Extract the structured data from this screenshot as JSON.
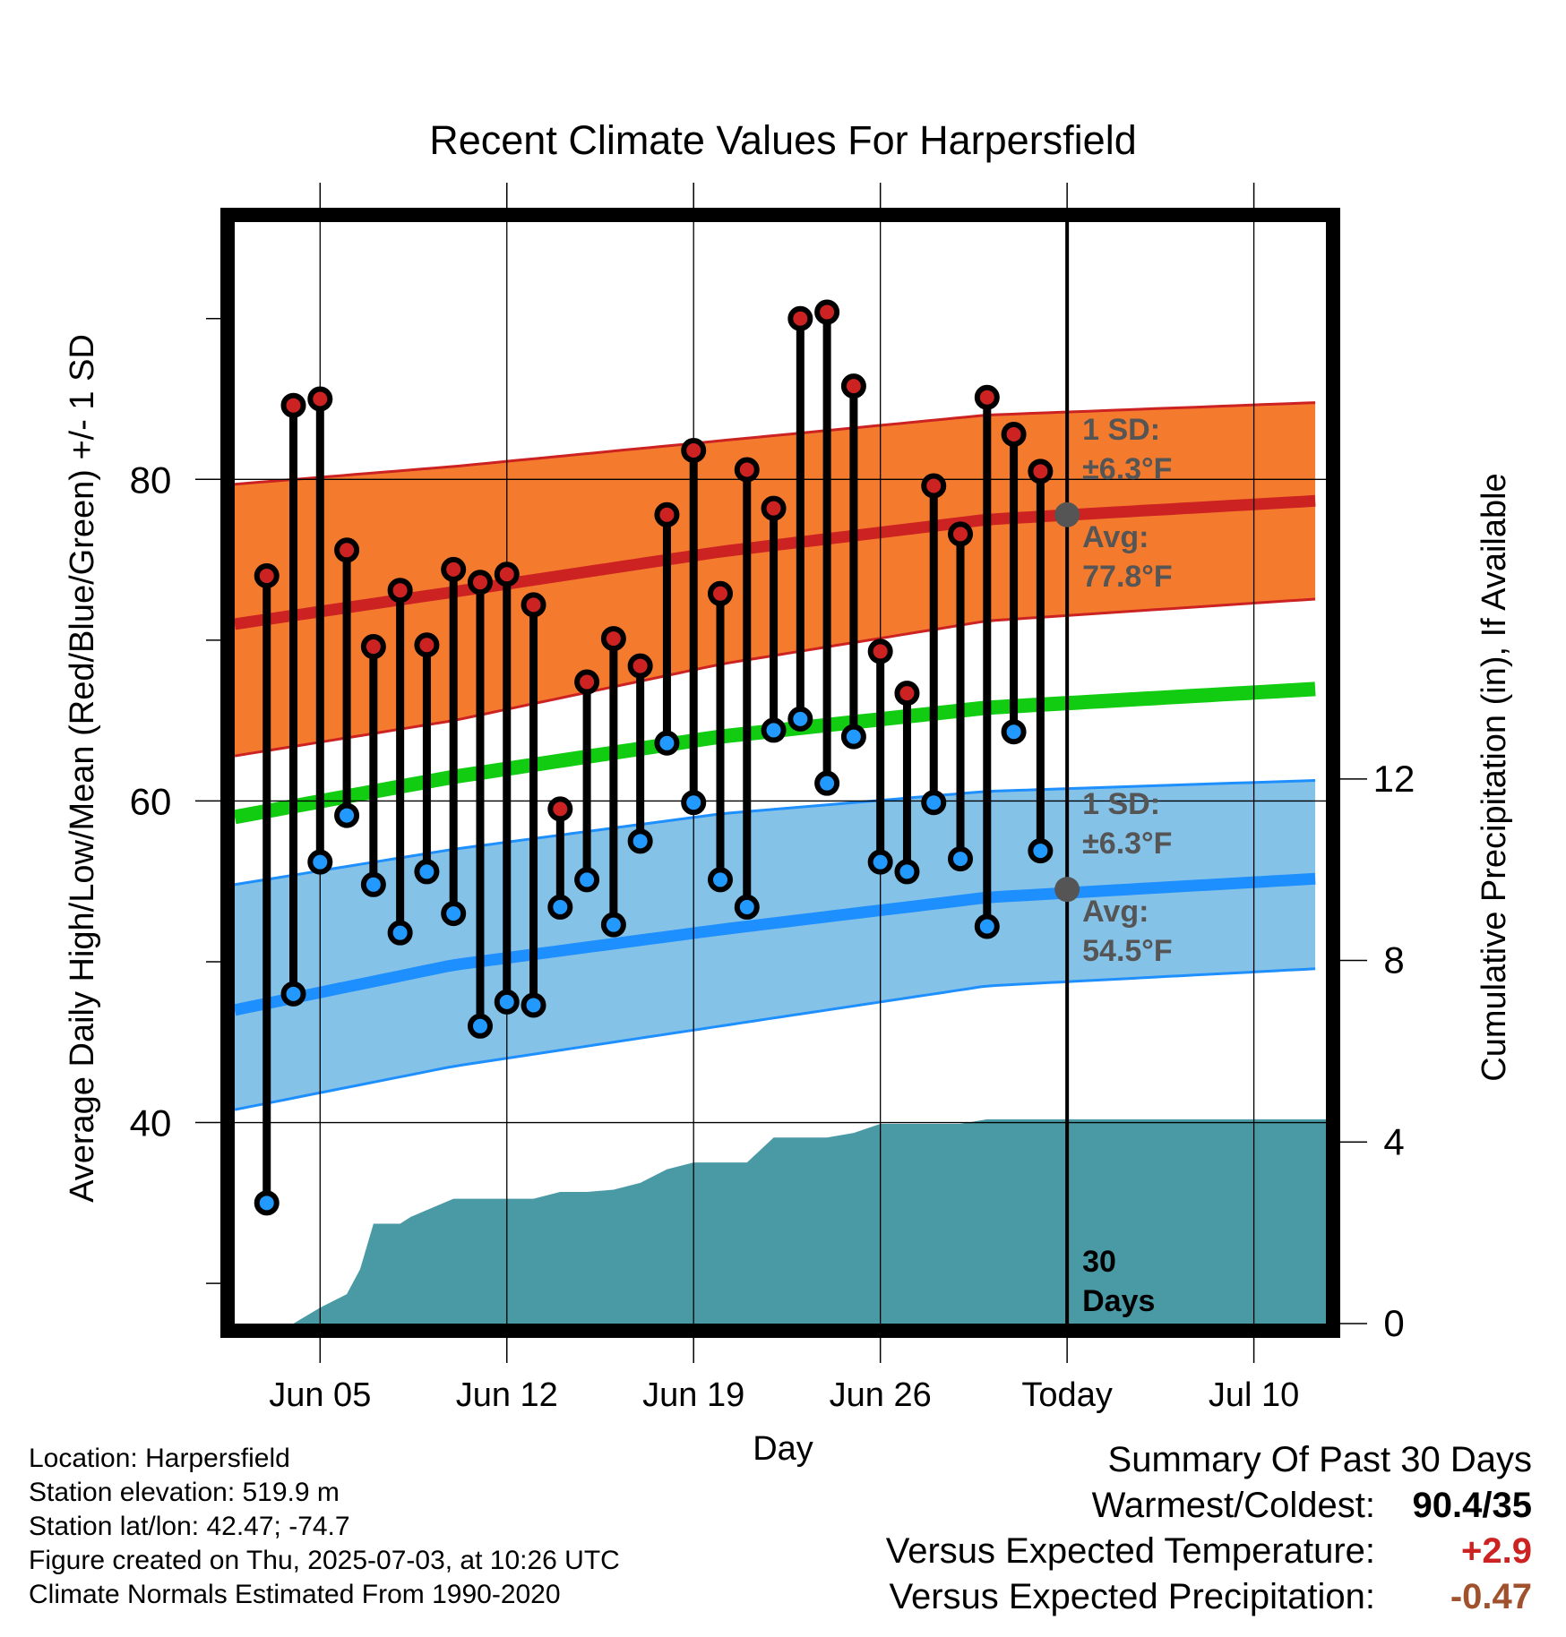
{
  "chart_data": {
    "type": "line",
    "title": "Recent Climate Values For Harpersfield",
    "xlabel": "Day",
    "ylabel_left": "Average Daily High/Low/Mean (Red/Blue/Green) +/- 1 SD",
    "ylabel_right": "Cumulative Precipitation (in), If Available",
    "x_ticks": [
      {
        "day": 5,
        "label": "Jun 05"
      },
      {
        "day": 12,
        "label": "Jun 12"
      },
      {
        "day": 19,
        "label": "Jun 19"
      },
      {
        "day": 26,
        "label": "Jun 26"
      },
      {
        "day": 33,
        "label": "Today"
      },
      {
        "day": 40,
        "label": "Jul 10"
      }
    ],
    "xlim": [
      1.8,
      42.7
    ],
    "ylim_left": [
      27.5,
      96
    ],
    "y_ticks_left": [
      40,
      60,
      80
    ],
    "y_minor_left": [
      30,
      50,
      70,
      90
    ],
    "ylim_right": [
      0,
      24.27
    ],
    "y_ticks_right": [
      0,
      4,
      8,
      12
    ],
    "today_day": 33,
    "today_label": [
      "30",
      "Days"
    ],
    "high_band": {
      "x": [
        1.8,
        10,
        20,
        30,
        42.7
      ],
      "mean": [
        71.0,
        73.0,
        75.5,
        77.5,
        78.7
      ],
      "upper": [
        79.7,
        80.8,
        82.4,
        84.0,
        84.8
      ],
      "lower": [
        62.8,
        65.0,
        68.5,
        71.2,
        72.6
      ]
    },
    "low_band": {
      "x": [
        1.8,
        10,
        20,
        30,
        42.7
      ],
      "mean": [
        47.0,
        49.8,
        52.0,
        54.0,
        55.2
      ],
      "upper": [
        54.8,
        57.0,
        59.2,
        60.6,
        61.3
      ],
      "lower": [
        40.8,
        43.5,
        46.0,
        48.5,
        49.6
      ]
    },
    "mean_line": {
      "x": [
        1.8,
        10,
        20,
        30,
        42.7
      ],
      "values": [
        59.0,
        61.5,
        64.0,
        65.8,
        67.0
      ]
    },
    "annotations": {
      "high": {
        "sd_title": "1 SD:",
        "sd_value": "±6.3°F",
        "avg_title": "Avg:",
        "avg_value": "77.8°F",
        "marker_value": 77.8
      },
      "low": {
        "sd_title": "1 SD:",
        "sd_value": "±6.3°F",
        "avg_title": "Avg:",
        "avg_value": "54.5°F",
        "marker_value": 54.5
      }
    },
    "days": [
      3,
      4,
      5,
      6,
      7,
      8,
      9,
      10,
      11,
      12,
      13,
      14,
      15,
      16,
      17,
      18,
      19,
      20,
      21,
      22,
      23,
      24,
      25,
      26,
      27,
      28,
      29,
      30,
      31,
      32
    ],
    "series": [
      {
        "name": "High",
        "color": "#cc2222",
        "values": [
          74,
          84.6,
          85,
          75.6,
          69.6,
          73.1,
          69.7,
          74.4,
          73.6,
          74.1,
          72.2,
          59.5,
          67.4,
          70.1,
          68.4,
          77.8,
          81.8,
          72.9,
          80.6,
          78.2,
          90.0,
          90.4,
          85.8,
          69.3,
          66.7,
          79.6,
          76.6,
          85.1,
          82.8,
          80.5
        ]
      },
      {
        "name": "Low",
        "color": "#2299ff",
        "values": [
          35,
          48.0,
          56.2,
          59.1,
          54.8,
          51.8,
          55.6,
          53.0,
          46.0,
          47.5,
          47.3,
          53.4,
          55.1,
          52.3,
          57.5,
          63.6,
          59.9,
          55.1,
          53.4,
          64.4,
          65.1,
          61.1,
          64.0,
          56.2,
          55.6,
          59.9,
          56.4,
          52.2,
          64.3,
          56.9
        ]
      }
    ],
    "precip": {
      "x": [
        4,
        5,
        6,
        6.5,
        7,
        8,
        8.4,
        9,
        10,
        11,
        12,
        13,
        14,
        15,
        16,
        17,
        18,
        19,
        20,
        21,
        22,
        23,
        24,
        25,
        26,
        27,
        28,
        29,
        30,
        31,
        32,
        33,
        42.7
      ],
      "values": [
        0,
        0.35,
        0.65,
        1.2,
        2.2,
        2.2,
        2.35,
        2.5,
        2.75,
        2.75,
        2.75,
        2.75,
        2.9,
        2.9,
        2.95,
        3.1,
        3.4,
        3.55,
        3.55,
        3.55,
        4.1,
        4.1,
        4.1,
        4.2,
        4.4,
        4.4,
        4.4,
        4.4,
        4.5,
        4.5,
        4.5,
        4.5,
        4.5
      ]
    }
  },
  "location": {
    "location_line": "Location: Harpersfield",
    "elevation_line": "Station elevation: 519.9 m",
    "latlon_line": "Station lat/lon: 42.47; -74.7",
    "created_line": "Figure created on Thu, 2025-07-03, at 10:26 UTC",
    "normals_line": "Climate Normals Estimated From 1990-2020"
  },
  "summary": {
    "title": "Summary Of Past 30 Days",
    "rows": [
      {
        "label": "Warmest/Coldest:",
        "value": "90.4/35",
        "color": "#000000"
      },
      {
        "label": "Versus Expected Temperature:",
        "value": "+2.9",
        "color": "#cc2222"
      },
      {
        "label": "Versus Expected Precipitation:",
        "value": "-0.47",
        "color": "#a0522d"
      }
    ]
  },
  "colors": {
    "high_band": "#f47b2e",
    "high_line": "#cc2222",
    "low_band": "#85c2e8",
    "low_line": "#1e8fff",
    "mean_line": "#11cc11",
    "precip": "#4a9aa5",
    "high_dot": "#cc2222",
    "low_dot": "#2299ff",
    "annotation": "#555555"
  }
}
